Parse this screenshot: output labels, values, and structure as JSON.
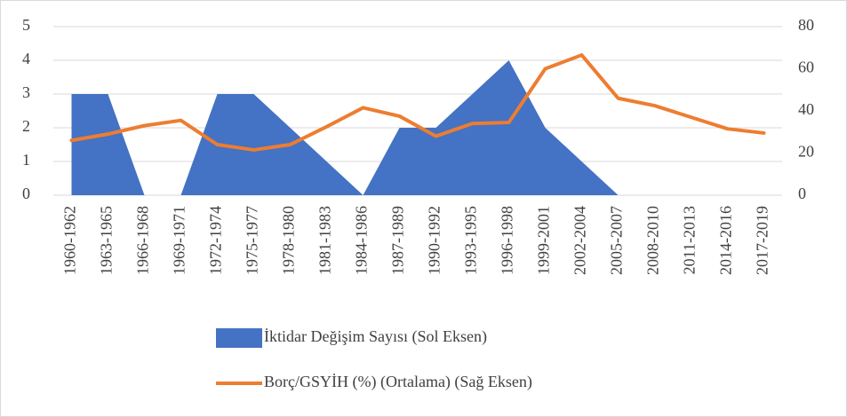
{
  "chart_data": {
    "type": "combo",
    "categories": [
      "1960-1962",
      "1963-1965",
      "1966-1968",
      "1969-1971",
      "1972-1974",
      "1975-1977",
      "1978-1980",
      "1981-1983",
      "1984-1986",
      "1987-1989",
      "1990-1992",
      "1993-1995",
      "1996-1998",
      "1999-2001",
      "2002-2004",
      "2005-2007",
      "2008-2010",
      "2011-2013",
      "2014-2016",
      "2017-2019"
    ],
    "series": [
      {
        "name": "İktidar Değişim Sayısı (Sol Eksen)",
        "type": "area",
        "color": "#4472c4",
        "values": [
          3,
          3,
          0,
          0,
          3,
          3,
          2,
          1,
          0,
          2,
          2,
          3,
          4,
          2,
          1,
          0,
          0,
          0,
          0,
          0
        ]
      },
      {
        "name": "Borç/GSYİH (%) (Ortalama) (Sağ Eksen)",
        "type": "line",
        "axis": "y2",
        "color": "#ed7d31",
        "values": [
          26,
          29,
          33,
          35.5,
          24,
          21.5,
          24,
          32.5,
          41.5,
          37.5,
          28,
          34,
          34.5,
          60,
          66.5,
          46,
          42.5,
          37,
          31.5,
          29.5
        ]
      }
    ],
    "ylim": [
      0,
      5
    ],
    "yticks": [
      0,
      1,
      2,
      3,
      4,
      5
    ],
    "y2lim": [
      0,
      80
    ],
    "y2ticks": [
      0,
      20,
      40,
      60,
      80
    ],
    "grid": true
  }
}
